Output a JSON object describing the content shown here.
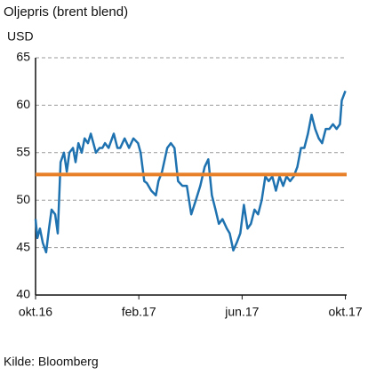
{
  "chart_data": {
    "type": "line",
    "title": "Oljepris (brent blend)",
    "y_label": "USD",
    "source": "Kilde: Bloomberg",
    "x": [
      0,
      0.07,
      0.17,
      0.28,
      0.41,
      0.52,
      0.62,
      0.76,
      0.86,
      0.97,
      1.1,
      1.21,
      1.31,
      1.45,
      1.55,
      1.66,
      1.79,
      1.9,
      2.03,
      2.14,
      2.24,
      2.34,
      2.48,
      2.59,
      2.69,
      2.83,
      3.03,
      3.17,
      3.28,
      3.45,
      3.62,
      3.79,
      3.97,
      4.07,
      4.21,
      4.31,
      4.48,
      4.66,
      4.76,
      4.9,
      5.1,
      5.24,
      5.38,
      5.52,
      5.69,
      5.86,
      6.03,
      6.21,
      6.38,
      6.55,
      6.69,
      6.83,
      6.97,
      7.1,
      7.24,
      7.41,
      7.52,
      7.66,
      7.79,
      7.93,
      8.07,
      8.21,
      8.34,
      8.48,
      8.62,
      8.76,
      8.9,
      9.03,
      9.17,
      9.31,
      9.45,
      9.59,
      9.72,
      9.86,
      10.0,
      10.14,
      10.28,
      10.41,
      10.55,
      10.69,
      10.83,
      10.97,
      11.1,
      11.24,
      11.38,
      11.52,
      11.66,
      11.79,
      11.86,
      12
    ],
    "series": [
      {
        "color": "#1f72b0",
        "values": [
          48,
          46,
          47,
          45.5,
          44.5,
          47,
          49,
          48.5,
          46.5,
          54,
          55,
          53,
          55,
          55.5,
          54,
          56,
          55,
          56.5,
          56,
          57,
          56,
          55,
          55.5,
          55.5,
          56,
          55.5,
          57,
          55.5,
          55.5,
          56.5,
          55.5,
          56.5,
          56,
          55,
          52,
          51.8,
          51,
          50.5,
          52,
          53,
          55.5,
          56,
          55.5,
          52,
          51.5,
          51.5,
          48.5,
          50,
          51.5,
          53.5,
          54.3,
          50.5,
          49,
          47.5,
          48,
          47,
          46.5,
          44.7,
          45.5,
          46.5,
          49.5,
          47,
          47.5,
          49,
          48.5,
          50,
          52.5,
          52,
          52.5,
          51,
          52.5,
          51.5,
          52.5,
          52,
          52.5,
          53.5,
          55.5,
          55.5,
          57,
          59,
          57.5,
          56.5,
          56,
          57.5,
          57.5,
          58,
          57.5,
          58,
          60.5,
          61.5
        ]
      }
    ],
    "reference_line": {
      "value": 52.7,
      "color": "#e8802a"
    },
    "xlim": [
      0,
      12.05
    ],
    "xticks": [
      {
        "value": 0,
        "label": "okt.16"
      },
      {
        "value": 4,
        "label": "feb.17"
      },
      {
        "value": 8,
        "label": "jun.17"
      },
      {
        "value": 12,
        "label": "okt.17"
      }
    ],
    "ylim": [
      40,
      65
    ],
    "yticks": [
      40,
      45,
      50,
      55,
      60,
      65
    ],
    "grid": true
  }
}
